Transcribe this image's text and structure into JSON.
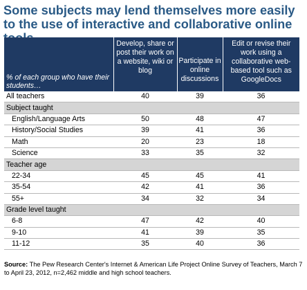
{
  "title": "Some subjects may lend themselves more easily to the use of interactive and collaborative online tools",
  "chart_data": {
    "type": "table",
    "row_header_label": "% of each group who have their students…",
    "columns": [
      "Develop, share or post their work on a website, wiki or blog",
      "Participate in online discussions",
      "Edit or revise their work using a collaborative web-based tool such as GoogleDocs"
    ],
    "overall": {
      "label": "All teachers",
      "values": [
        "40",
        "39",
        "36"
      ]
    },
    "sections": [
      {
        "name": "Subject taught",
        "rows": [
          {
            "label": "English/Language Arts",
            "values": [
              "50",
              "48",
              "47"
            ]
          },
          {
            "label": "History/Social Studies",
            "values": [
              "39",
              "41",
              "36"
            ]
          },
          {
            "label": "Math",
            "values": [
              "20",
              "23",
              "18"
            ]
          },
          {
            "label": "Science",
            "values": [
              "33",
              "35",
              "32"
            ]
          }
        ]
      },
      {
        "name": "Teacher age",
        "rows": [
          {
            "label": "22-34",
            "values": [
              "45",
              "45",
              "41"
            ]
          },
          {
            "label": "35-54",
            "values": [
              "42",
              "41",
              "36"
            ]
          },
          {
            "label": "55+",
            "values": [
              "34",
              "32",
              "34"
            ]
          }
        ]
      },
      {
        "name": "Grade level taught",
        "rows": [
          {
            "label": "6-8",
            "values": [
              "47",
              "42",
              "40"
            ]
          },
          {
            "label": "9-10",
            "values": [
              "41",
              "39",
              "35"
            ]
          },
          {
            "label": "11-12",
            "values": [
              "35",
              "40",
              "36"
            ]
          }
        ]
      }
    ]
  },
  "source": {
    "label": "Source:",
    "text": "The Pew Research Center's Internet & American Life Project Online Survey of Teachers, March 7 to April 23, 2012, n=2,462 middle and high school teachers."
  },
  "colors": {
    "title": "#2a5a86",
    "header_bg": "#1f3a63",
    "section_bg": "#d5d5d5"
  }
}
